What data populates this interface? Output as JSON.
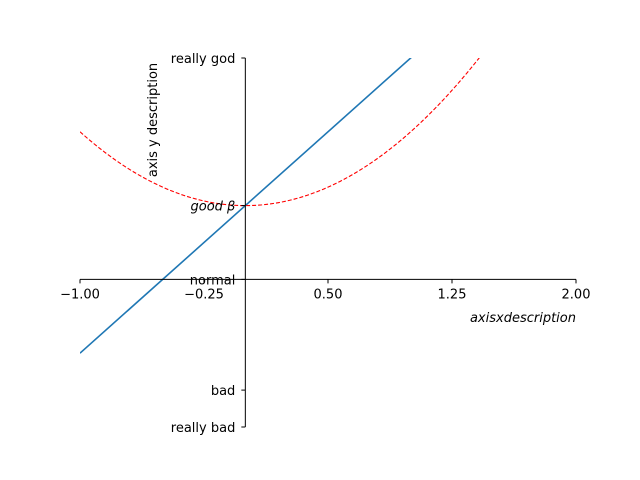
{
  "chart_data": {
    "type": "line",
    "xlim": [
      -1,
      2
    ],
    "ylim": [
      -2,
      3
    ],
    "xlabel": "axisxdescription",
    "ylabel": "axis y description",
    "x_ticks": [
      {
        "value": -1.0,
        "label": "−1.00"
      },
      {
        "value": -0.25,
        "label": "−0.25"
      },
      {
        "value": 0.5,
        "label": "0.50"
      },
      {
        "value": 1.25,
        "label": "1.25"
      },
      {
        "value": 2.0,
        "label": "2.00"
      }
    ],
    "y_ticks": [
      {
        "value": -2,
        "label": "really bad"
      },
      {
        "value": -1.5,
        "label": "bad"
      },
      {
        "value": 0,
        "label": "normal"
      },
      {
        "value": 1,
        "label": "good β"
      },
      {
        "value": 3,
        "label": "really god"
      }
    ],
    "series": [
      {
        "color": "#1f77b4",
        "style": "solid",
        "formula": "y = 2x + 1",
        "x": [
          -1,
          2
        ],
        "y": [
          -1,
          5
        ]
      },
      {
        "color": "#ff0000",
        "style": "dashed",
        "formula": "y = x^2 + 1",
        "x_range": [
          -1,
          2
        ]
      }
    ],
    "grid": false,
    "spines": "centered at x=0, y=0"
  }
}
